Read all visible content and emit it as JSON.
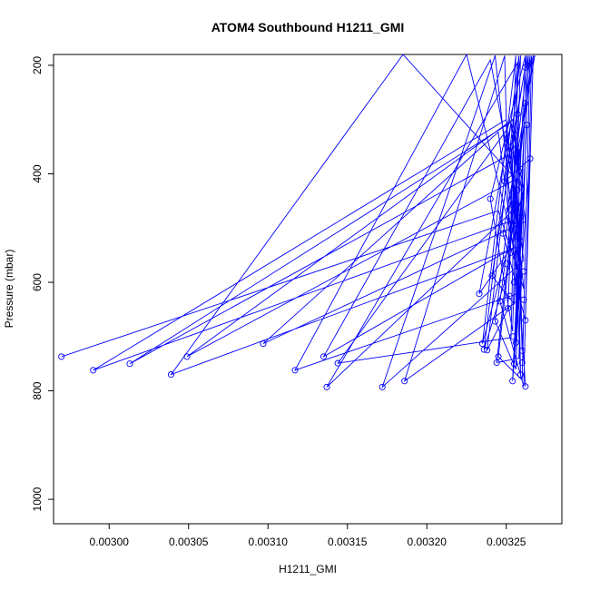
{
  "chart_data": {
    "type": "scatter",
    "title": "ATOM4 Southbound H1211_GMI",
    "xlabel": "H1211_GMI",
    "ylabel": "Pressure (mbar)",
    "xlim": [
      0.002965,
      0.003285
    ],
    "ylim": [
      1045,
      180
    ],
    "x_ticks": [
      0.003,
      0.00305,
      0.0031,
      0.00315,
      0.0032,
      0.00325
    ],
    "x_tick_labels": [
      "0.00300",
      "0.00305",
      "0.00310",
      "0.00315",
      "0.00320",
      "0.00325"
    ],
    "y_ticks": [
      200,
      400,
      600,
      800,
      1000
    ],
    "y_tick_labels": [
      "200",
      "400",
      "600",
      "800",
      "1000"
    ],
    "series_color": "#0000ff",
    "series": [
      {
        "name": "H1211_GMI",
        "points": [
          [
            0.00297,
            737
          ],
          [
            0.00299,
            762
          ],
          [
            0.003013,
            750
          ],
          [
            0.003039,
            770
          ],
          [
            0.003049,
            737
          ],
          [
            0.003097,
            713
          ],
          [
            0.003117,
            762
          ],
          [
            0.003135,
            737
          ],
          [
            0.003137,
            793
          ],
          [
            0.003144,
            749
          ],
          [
            0.003172,
            793
          ],
          [
            0.003186,
            782
          ],
          [
            0.003233,
            621
          ],
          [
            0.003235,
            713
          ],
          [
            0.003236,
            724
          ],
          [
            0.003238,
            725
          ],
          [
            0.00324,
            446
          ],
          [
            0.003241,
            588
          ],
          [
            0.003243,
            672
          ],
          [
            0.003244,
            748
          ],
          [
            0.003245,
            737
          ],
          [
            0.003246,
            635
          ],
          [
            0.003248,
            510
          ],
          [
            0.003249,
            414
          ],
          [
            0.00325,
            566
          ],
          [
            0.003251,
            648
          ],
          [
            0.003252,
            625
          ],
          [
            0.003253,
            545
          ],
          [
            0.003254,
            782
          ],
          [
            0.003254,
            700
          ],
          [
            0.003255,
            750
          ],
          [
            0.003256,
            711
          ],
          [
            0.003257,
            430
          ],
          [
            0.003258,
            590
          ],
          [
            0.003258,
            520
          ],
          [
            0.003259,
            770
          ],
          [
            0.00326,
            726
          ],
          [
            0.00326,
            748
          ],
          [
            0.003261,
            632
          ],
          [
            0.003261,
            580
          ],
          [
            0.003262,
            792
          ],
          [
            0.003262,
            670
          ],
          [
            0.003262,
            270
          ],
          [
            0.003262,
            204
          ],
          [
            0.003263,
            310
          ],
          [
            0.003265,
            372
          ],
          [
            0.003256,
            330
          ],
          [
            0.003255,
            455
          ],
          [
            0.003253,
            350
          ],
          [
            0.003257,
            290
          ],
          [
            0.003259,
            480
          ],
          [
            0.003255,
            600
          ],
          [
            0.003252,
            465
          ],
          [
            0.003258,
            395
          ]
        ],
        "path": [
          [
            0.00297,
            737
          ],
          [
            0.003245,
            468
          ],
          [
            0.003261,
            612
          ],
          [
            0.00325,
            300
          ],
          [
            0.00299,
            762
          ],
          [
            0.003255,
            485
          ],
          [
            0.003258,
            355
          ],
          [
            0.003013,
            750
          ],
          [
            0.003253,
            305
          ],
          [
            0.003259,
            533
          ],
          [
            0.003039,
            770
          ],
          [
            0.003185,
            180
          ],
          [
            0.003256,
            410
          ],
          [
            0.003049,
            737
          ],
          [
            0.003254,
            300
          ],
          [
            0.003262,
            488
          ],
          [
            0.003097,
            713
          ],
          [
            0.003245,
            323
          ],
          [
            0.003258,
            620
          ],
          [
            0.003117,
            762
          ],
          [
            0.003225,
            180
          ],
          [
            0.003255,
            535
          ],
          [
            0.003135,
            737
          ],
          [
            0.00324,
            190
          ],
          [
            0.003257,
            460
          ],
          [
            0.003137,
            793
          ],
          [
            0.003257,
            196
          ],
          [
            0.003253,
            702
          ],
          [
            0.003144,
            749
          ],
          [
            0.00325,
            320
          ],
          [
            0.003261,
            560
          ],
          [
            0.003172,
            793
          ],
          [
            0.003243,
            182
          ],
          [
            0.003259,
            630
          ],
          [
            0.003186,
            782
          ],
          [
            0.003249,
            182
          ],
          [
            0.003252,
            540
          ],
          [
            0.003233,
            621
          ],
          [
            0.003253,
            305
          ],
          [
            0.003261,
            430
          ],
          [
            0.003235,
            713
          ],
          [
            0.003256,
            182
          ],
          [
            0.003252,
            570
          ],
          [
            0.003236,
            724
          ],
          [
            0.003258,
            182
          ],
          [
            0.003251,
            650
          ],
          [
            0.003238,
            725
          ],
          [
            0.003259,
            182
          ],
          [
            0.003254,
            690
          ],
          [
            0.00324,
            446
          ],
          [
            0.003262,
            182
          ],
          [
            0.003255,
            640
          ],
          [
            0.003241,
            588
          ],
          [
            0.003263,
            182
          ],
          [
            0.003256,
            760
          ],
          [
            0.003243,
            672
          ],
          [
            0.003264,
            182
          ],
          [
            0.003258,
            740
          ],
          [
            0.003244,
            748
          ],
          [
            0.003265,
            182
          ],
          [
            0.00326,
            780
          ],
          [
            0.003245,
            737
          ],
          [
            0.003266,
            182
          ],
          [
            0.003261,
            792
          ],
          [
            0.003246,
            635
          ],
          [
            0.003267,
            182
          ],
          [
            0.003262,
            670
          ],
          [
            0.003248,
            510
          ],
          [
            0.003268,
            182
          ],
          [
            0.003262,
            204
          ],
          [
            0.003249,
            414
          ],
          [
            0.003265,
            372
          ],
          [
            0.003254,
            782
          ],
          [
            0.003262,
            270
          ],
          [
            0.003255,
            750
          ],
          [
            0.003263,
            310
          ],
          [
            0.003256,
            711
          ],
          [
            0.003257,
            290
          ],
          [
            0.00326,
            726
          ],
          [
            0.003256,
            330
          ],
          [
            0.003259,
            770
          ],
          [
            0.003253,
            350
          ],
          [
            0.003262,
            792
          ]
        ]
      }
    ]
  }
}
